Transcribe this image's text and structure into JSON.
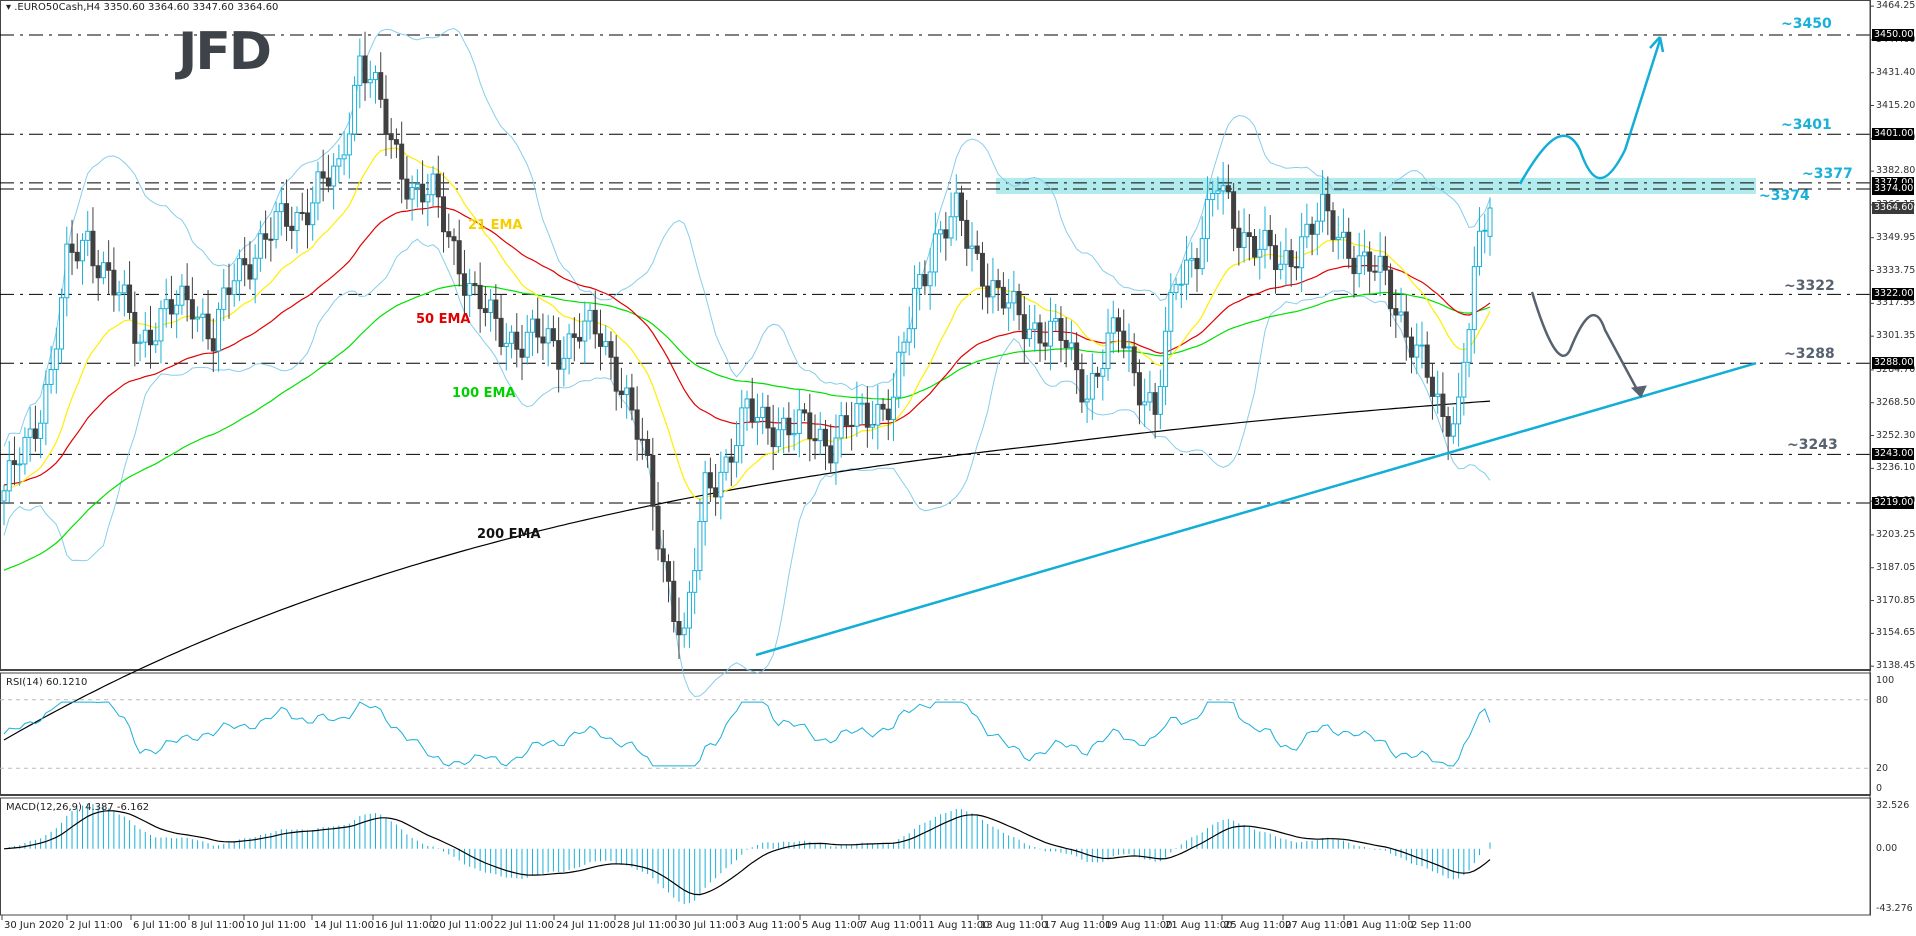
{
  "header": {
    "symbol_line": ".EURO50Cash,H4  3350.60 3364.60 3347.60 3364.60",
    "symbol": ".EURO50Cash",
    "timeframe": "H4",
    "open": "3350.60",
    "high": "3364.60",
    "low": "3347.60",
    "close": "3364.60"
  },
  "logo": {
    "text": "JFD"
  },
  "colors": {
    "bull_candle": "#1ab0d8",
    "bear_candle": "#404040",
    "ema21": "#ffee00",
    "ema50": "#e00000",
    "ema100": "#00e000",
    "ema200": "#000000",
    "bollinger": "#87ceeb",
    "trendline": "#12aed6",
    "zone_fill": "#aeeaec",
    "level_label_up": "#1ab0d8",
    "level_label_down": "#566270",
    "rsi_line": "#1ab0d8",
    "macd_hist": "#1ab0d8",
    "macd_signal": "#000000"
  },
  "ema_labels": {
    "ema21": "21 EMA",
    "ema50": "50 EMA",
    "ema100": "100 EMA",
    "ema200": "200 EMA"
  },
  "levels": [
    {
      "label": "~3450",
      "value": 3450.0,
      "tag": "3450.00",
      "color": "#1ab0d8"
    },
    {
      "label": "~3401",
      "value": 3401.0,
      "tag": "3401.00",
      "color": "#1ab0d8"
    },
    {
      "label": "~3377",
      "value": 3377.0,
      "tag": "3377.00",
      "color": "#1ab0d8"
    },
    {
      "label": "~3374",
      "value": 3374.0,
      "tag": "3374.00",
      "color": "#1ab0d8"
    },
    {
      "label": "~3322",
      "value": 3322.0,
      "tag": "3322.00",
      "color": "#566270"
    },
    {
      "label": "~3288",
      "value": 3288.0,
      "tag": "3288.00",
      "color": "#566270"
    },
    {
      "label": "~3243",
      "value": 3243.0,
      "tag": "3243.00",
      "color": "#566270"
    },
    {
      "label": "",
      "value": 3219.0,
      "tag": "3219.00",
      "color": "#566270"
    }
  ],
  "current_price_tag": "3364.60",
  "price_axis": [
    "3464.25",
    "3447.60",
    "3431.40",
    "3415.20",
    "3399.00",
    "3382.80",
    "3366.15",
    "3349.95",
    "3333.75",
    "3317.55",
    "3301.35",
    "3284.70",
    "3268.50",
    "3252.30",
    "3236.10",
    "3219.90",
    "3203.25",
    "3187.05",
    "3170.85",
    "3154.65",
    "3138.45"
  ],
  "rsi": {
    "label": "RSI(14) 60.1210",
    "period": 14,
    "value": "60.1210",
    "axis": [
      "100",
      "80",
      "20",
      "0"
    ]
  },
  "macd": {
    "label": "MACD(12,26,9) 4.387 -6.162",
    "params": "12,26,9",
    "main": "4.387",
    "signal": "-6.162",
    "axis": [
      "32.526",
      "0.00",
      "-43.276"
    ]
  },
  "time_axis": [
    "30 Jun 2020",
    "2 Jul 11:00",
    "6 Jul 11:00",
    "8 Jul 11:00",
    "10 Jul 11:00",
    "14 Jul 11:00",
    "16 Jul 11:00",
    "20 Jul 11:00",
    "22 Jul 11:00",
    "24 Jul 11:00",
    "28 Jul 11:00",
    "30 Jul 11:00",
    "3 Aug 11:00",
    "5 Aug 11:00",
    "7 Aug 11:00",
    "11 Aug 11:00",
    "13 Aug 11:00",
    "17 Aug 11:00",
    "19 Aug 11:00",
    "21 Aug 11:00",
    "25 Aug 11:00",
    "27 Aug 11:00",
    "31 Aug 11:00",
    "2 Sep 11:00"
  ],
  "chart_data": {
    "type": "candlestick",
    "title": ".EURO50Cash,H4",
    "xlabel": "",
    "ylabel": "",
    "ylim": [
      3138.45,
      3464.25
    ],
    "grid": false,
    "categories": [
      "30 Jun 2020",
      "2 Jul 11:00",
      "6 Jul 11:00",
      "8 Jul 11:00",
      "10 Jul 11:00",
      "14 Jul 11:00",
      "16 Jul 11:00",
      "20 Jul 11:00",
      "22 Jul 11:00",
      "24 Jul 11:00",
      "28 Jul 11:00",
      "30 Jul 11:00",
      "3 Aug 11:00",
      "5 Aug 11:00",
      "7 Aug 11:00",
      "11 Aug 11:00",
      "13 Aug 11:00",
      "17 Aug 11:00",
      "19 Aug 11:00",
      "21 Aug 11:00",
      "25 Aug 11:00",
      "27 Aug 11:00",
      "31 Aug 11:00",
      "2 Sep 11:00"
    ],
    "closes_approx": [
      3225,
      3300,
      3360,
      3340,
      3310,
      3330,
      3365,
      3375,
      3380,
      3300,
      3300,
      3200,
      3245,
      3258,
      3262,
      3350,
      3355,
      3305,
      3290,
      3280,
      3345,
      3340,
      3275,
      3364.6
    ],
    "last_bar": {
      "open": 3350.6,
      "high": 3364.6,
      "low": 3347.6,
      "close": 3364.6
    },
    "series": [
      {
        "name": "21 EMA",
        "values": [
          3230,
          3275,
          3330,
          3340,
          3320,
          3335,
          3358,
          3370,
          3372,
          3320,
          3305,
          3250,
          3258,
          3262,
          3265,
          3310,
          3318,
          3310,
          3305,
          3292,
          3325,
          3335,
          3305,
          3318
        ]
      },
      {
        "name": "50 EMA",
        "values": [
          3228,
          3250,
          3290,
          3305,
          3305,
          3318,
          3335,
          3345,
          3350,
          3330,
          3315,
          3285,
          3278,
          3270,
          3272,
          3290,
          3300,
          3302,
          3302,
          3295,
          3315,
          3322,
          3310,
          3315
        ]
      },
      {
        "name": "100 EMA",
        "values": [
          3180,
          3200,
          3230,
          3250,
          3265,
          3280,
          3295,
          3310,
          3320,
          3315,
          3310,
          3292,
          3288,
          3283,
          3280,
          3290,
          3295,
          3297,
          3297,
          3293,
          3303,
          3310,
          3305,
          3308
        ]
      },
      {
        "name": "200 EMA",
        "values": [
          3100,
          3112,
          3124,
          3137,
          3150,
          3165,
          3180,
          3195,
          3210,
          3222,
          3232,
          3240,
          3245,
          3248,
          3252,
          3256,
          3260,
          3264,
          3268,
          3272,
          3278,
          3282,
          3281,
          3282
        ]
      }
    ],
    "annotations": [
      {
        "type": "hline",
        "value": 3450,
        "label": "~3450"
      },
      {
        "type": "hline",
        "value": 3401,
        "label": "~3401"
      },
      {
        "type": "zone",
        "from": 3374,
        "to": 3377,
        "labels": [
          "~3377",
          "~3374"
        ]
      },
      {
        "type": "hline",
        "value": 3322,
        "label": "~3322"
      },
      {
        "type": "hline",
        "value": 3288,
        "label": "~3288"
      },
      {
        "type": "hline",
        "value": 3243,
        "label": "~3243"
      },
      {
        "type": "hline",
        "value": 3219,
        "label": ""
      },
      {
        "type": "trendline",
        "from": {
          "x": "31 Jul",
          "y": 3144
        },
        "to": {
          "x": "projected",
          "y": 3288
        }
      },
      {
        "type": "arrow",
        "direction": "up",
        "target": 3450,
        "color": "#1ab0d8"
      },
      {
        "type": "arrow",
        "direction": "down",
        "target": "trendline",
        "color": "#566270"
      }
    ],
    "indicators": [
      {
        "name": "RSI(14)",
        "value": 60.121,
        "levels": [
          80,
          20
        ],
        "ylim": [
          0,
          100
        ]
      },
      {
        "name": "MACD(12,26,9)",
        "main": 4.387,
        "signal": -6.162,
        "ylim": [
          -43.276,
          32.526
        ]
      }
    ]
  }
}
